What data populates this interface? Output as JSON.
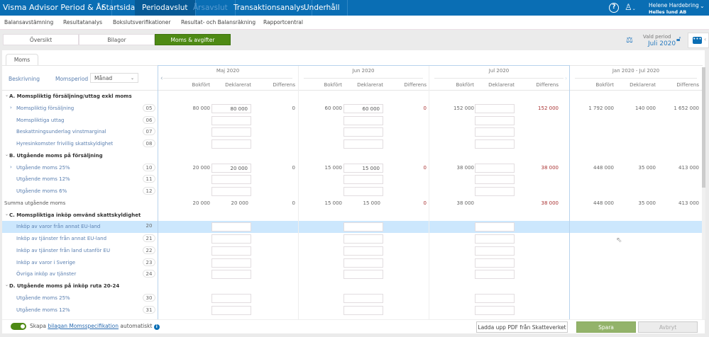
{
  "app": {
    "title": "Visma Advisor Period & År"
  },
  "topnav": [
    {
      "label": "Startsida"
    },
    {
      "label": "Periodavslut"
    },
    {
      "label": "Årsavslut"
    },
    {
      "label": "Transaktionsanalys"
    },
    {
      "label": "Underhåll"
    }
  ],
  "user": {
    "name": "Helene Hardebring",
    "company": "Helles lund AB",
    "help_icon": "question-circle-icon",
    "user_icon": "user-icon"
  },
  "subnav": [
    {
      "label": "Balansavstämning"
    },
    {
      "label": "Resultatanalys"
    },
    {
      "label": "Bokslutsverifikationer"
    },
    {
      "label": "Resultat- och Balansräkning"
    },
    {
      "label": "Rapportcentral"
    }
  ],
  "segments": [
    {
      "label": "Översikt"
    },
    {
      "label": "Bilagor"
    },
    {
      "label": "Moms & avgifter"
    }
  ],
  "period": {
    "label": "Vald period",
    "value": "Juli 2020"
  },
  "tab": "Moms",
  "filter": {
    "description_label": "Beskrivning",
    "momsperiod_label": "Momsperiod",
    "momsperiod_value": "Månad"
  },
  "periods": [
    {
      "title": "Maj 2020"
    },
    {
      "title": "Jun 2020"
    },
    {
      "title": "Jul 2020"
    },
    {
      "title": "Jan 2020 - Jul 2020"
    }
  ],
  "columns": {
    "bokfort": "Bokfört",
    "deklarerat": "Deklarerat",
    "differens": "Differens"
  },
  "rows": [
    {
      "type": "section",
      "label": "A. Momspliktig försäljning/uttag exkl moms"
    },
    {
      "type": "item",
      "label": "Momspliktig försäljning",
      "code": "05",
      "expand": true,
      "values": [
        [
          "80 000",
          "80 000",
          "0"
        ],
        [
          "60 000",
          "60 000",
          "0"
        ],
        [
          "152 000",
          "",
          "152 000"
        ],
        [
          "1 792 000",
          "140 000",
          "1 652 000"
        ]
      ]
    },
    {
      "type": "item",
      "label": "Momspliktiga uttag",
      "code": "06"
    },
    {
      "type": "item",
      "label": "Beskattningsunderlag vinstmarginal",
      "code": "07"
    },
    {
      "type": "item",
      "label": "Hyresinkomster frivillig skattskyldighet",
      "code": "08"
    },
    {
      "type": "section",
      "label": "B. Utgående moms på försäljning"
    },
    {
      "type": "item",
      "label": "Utgående moms 25%",
      "code": "10",
      "expand": true,
      "values": [
        [
          "20 000",
          "20 000",
          "0"
        ],
        [
          "15 000",
          "15 000",
          "0"
        ],
        [
          "38 000",
          "",
          "38 000"
        ],
        [
          "448 000",
          "35 000",
          "413 000"
        ]
      ]
    },
    {
      "type": "item",
      "label": "Utgående moms 12%",
      "code": "11"
    },
    {
      "type": "item",
      "label": "Utgående moms 6%",
      "code": "12"
    },
    {
      "type": "sum",
      "label": "Summa utgående moms",
      "values": [
        [
          "20 000",
          "20 000",
          "0"
        ],
        [
          "15 000",
          "15 000",
          "0"
        ],
        [
          "38 000",
          "",
          "38 000"
        ],
        [
          "448 000",
          "35 000",
          "413 000"
        ]
      ]
    },
    {
      "type": "section",
      "label": "C. Momspliktiga inköp omvänd skattskyldighet"
    },
    {
      "type": "item",
      "label": "Inköp av varor från annat EU-land",
      "code": "20",
      "selected": true
    },
    {
      "type": "item",
      "label": "Inköp av tjänster från annat EU-land",
      "code": "21"
    },
    {
      "type": "item",
      "label": "Inköp av tjänster från land utanför EU",
      "code": "22"
    },
    {
      "type": "item",
      "label": "Inköp av varor i Sverige",
      "code": "23"
    },
    {
      "type": "item",
      "label": "Övriga inköp av tjänster",
      "code": "24"
    },
    {
      "type": "section",
      "label": "D. Utgående moms på inköp ruta 20-24"
    },
    {
      "type": "item",
      "label": "Utgående moms 25%",
      "code": "30"
    },
    {
      "type": "item",
      "label": "Utgående moms 12%",
      "code": "31"
    }
  ],
  "footer": {
    "toggle_on": true,
    "text_before": "Skapa",
    "link": "bilagan Momsspecifikation",
    "text_after": "automatiskt",
    "upload_label": "Ladda upp PDF från Skatteverket",
    "save_label": "Spara",
    "cancel_label": "Avbryt"
  },
  "colors": {
    "brand": "#0a6eb4",
    "accent_green": "#4e8a14",
    "selected_row": "#cce7fd",
    "diff_red": "#a33"
  }
}
